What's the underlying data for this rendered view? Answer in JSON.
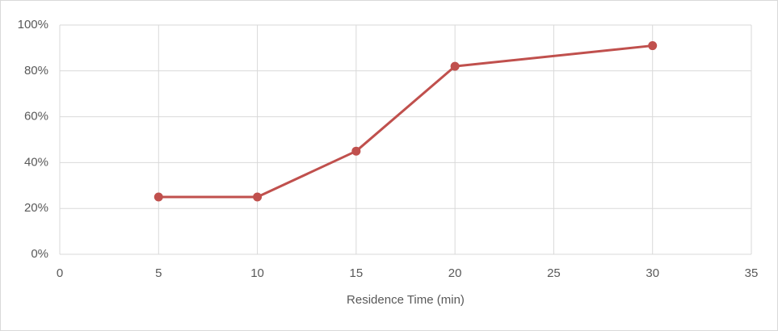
{
  "chart_data": {
    "type": "line",
    "x_label": "Residence Time (min)",
    "x": [
      5,
      10,
      15,
      20,
      30
    ],
    "values": [
      25,
      25,
      45,
      82,
      91
    ],
    "color": "#c0504d",
    "xlim": [
      0,
      35
    ],
    "xticks": [
      0,
      5,
      10,
      15,
      20,
      25,
      30,
      35
    ],
    "ylim": [
      0,
      100
    ],
    "yticks": [
      {
        "value": 0,
        "label": "0%"
      },
      {
        "value": 20,
        "label": "20%"
      },
      {
        "value": 40,
        "label": "40%"
      },
      {
        "value": 60,
        "label": "60%"
      },
      {
        "value": 80,
        "label": "80%"
      },
      {
        "value": 100,
        "label": "100%"
      }
    ],
    "grid": true
  }
}
